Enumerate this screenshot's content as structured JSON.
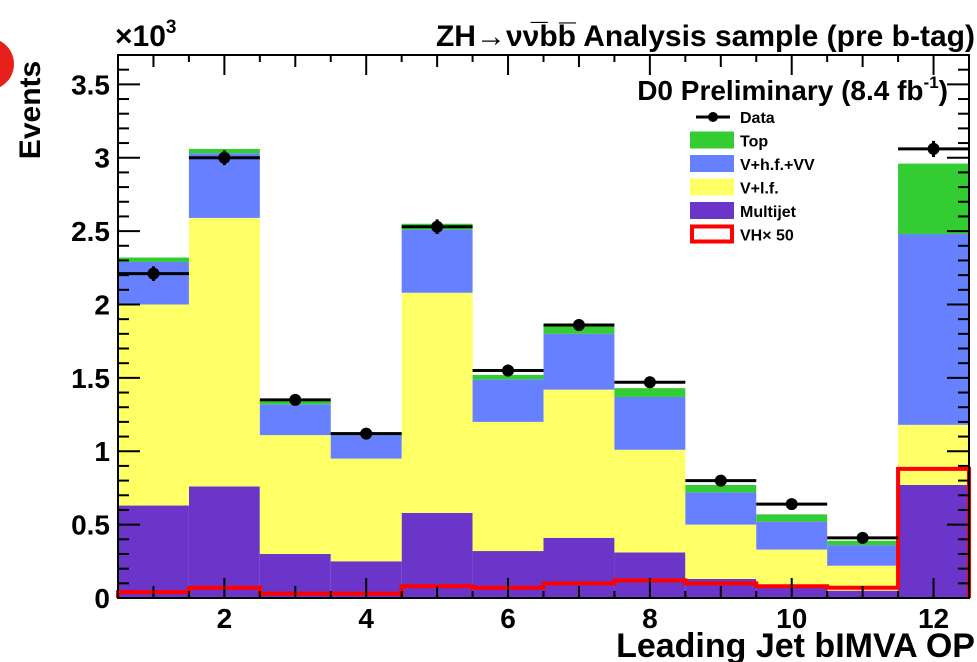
{
  "chart_data": {
    "type": "bar",
    "stacked": true,
    "title": "ZH→νν̅bb̅ Analysis sample (pre b-tag)",
    "experiment_label": "D0 Preliminary (8.4 fb",
    "experiment_label_sup": "-1",
    "experiment_label_close": ")",
    "xlabel": "Leading Jet bIMVA OP",
    "ylabel": "Events",
    "y_multiplier": "×10",
    "y_multiplier_exp": "3",
    "xlim": [
      0.5,
      12.5
    ],
    "ylim": [
      0,
      3.7
    ],
    "x_ticks": [
      2,
      4,
      6,
      8,
      10,
      12
    ],
    "y_ticks": [
      0,
      0.5,
      1,
      1.5,
      2,
      2.5,
      3,
      3.5
    ],
    "y_tick_labels": [
      "0",
      "0.5",
      "1",
      "1.5",
      "2",
      "2.5",
      "3",
      "3.5"
    ],
    "bins": [
      1,
      2,
      3,
      4,
      5,
      6,
      7,
      8,
      9,
      10,
      11,
      12
    ],
    "series": [
      {
        "name": "Multijet",
        "color": "#6a35c8",
        "values": [
          0.63,
          0.76,
          0.3,
          0.25,
          0.58,
          0.32,
          0.41,
          0.31,
          0.13,
          0.07,
          0.05,
          0.77
        ]
      },
      {
        "name": "V+l.f.",
        "color": "#ffff66",
        "values": [
          1.37,
          1.83,
          0.81,
          0.7,
          1.5,
          0.88,
          1.01,
          0.7,
          0.37,
          0.26,
          0.17,
          0.41
        ]
      },
      {
        "name": "V+h.f.+VV",
        "color": "#6680ff",
        "values": [
          0.29,
          0.44,
          0.21,
          0.16,
          0.43,
          0.29,
          0.38,
          0.36,
          0.22,
          0.19,
          0.14,
          1.3
        ]
      },
      {
        "name": "Top",
        "color": "#33cc33",
        "values": [
          0.03,
          0.03,
          0.02,
          0.02,
          0.04,
          0.03,
          0.05,
          0.06,
          0.05,
          0.05,
          0.03,
          0.48
        ]
      }
    ],
    "signal": {
      "name": "VH× 50",
      "color": "#ff0000",
      "values": [
        0.04,
        0.07,
        0.03,
        0.03,
        0.08,
        0.07,
        0.1,
        0.12,
        0.1,
        0.08,
        0.07,
        0.88
      ]
    },
    "data_points": {
      "name": "Data",
      "values": [
        2.21,
        3.0,
        1.35,
        1.12,
        2.53,
        1.55,
        1.86,
        1.47,
        0.8,
        0.64,
        0.41,
        3.06
      ],
      "errors": [
        0.05,
        0.05,
        0.035,
        0.035,
        0.05,
        0.04,
        0.04,
        0.04,
        0.03,
        0.025,
        0.02,
        0.055
      ]
    },
    "legend": [
      {
        "label": "Data",
        "kind": "marker"
      },
      {
        "label": "Top",
        "kind": "fill",
        "color": "#33cc33"
      },
      {
        "label": "V+h.f.+VV",
        "kind": "fill",
        "color": "#6680ff"
      },
      {
        "label": "V+l.f.",
        "kind": "fill",
        "color": "#ffff66"
      },
      {
        "label": "Multijet",
        "kind": "fill",
        "color": "#6a35c8"
      },
      {
        "label": "VH× 50",
        "kind": "outline",
        "color": "#ff0000"
      }
    ],
    "legend_position": "top-right"
  }
}
